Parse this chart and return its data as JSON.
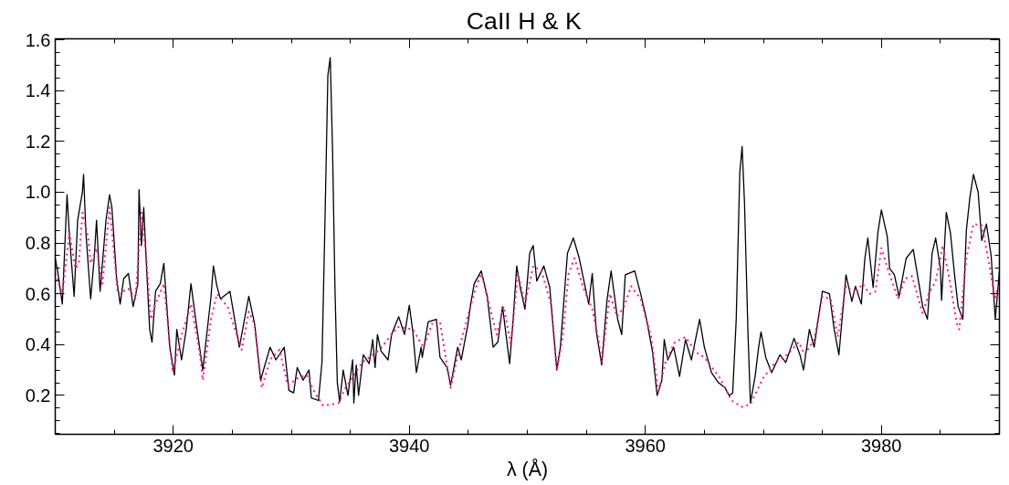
{
  "chart_data": {
    "type": "line",
    "title": "CaII  H & K",
    "xlabel": "λ (Å)",
    "xlim": [
      3910,
      3990
    ],
    "ylim": [
      0.047,
      1.604
    ],
    "xticks": [
      {
        "value": 3915,
        "label": null
      },
      3920,
      {
        "value": 3925,
        "label": null
      },
      {
        "value": 3930,
        "label": null
      },
      {
        "value": 3935,
        "label": null
      },
      3940,
      {
        "value": 3945,
        "label": null
      },
      {
        "value": 3950,
        "label": null
      },
      {
        "value": 3955,
        "label": null
      },
      3960,
      {
        "value": 3965,
        "label": null
      },
      {
        "value": 3970,
        "label": null
      },
      {
        "value": 3975,
        "label": null
      },
      3980,
      {
        "value": 3985,
        "label": null
      }
    ],
    "yticks": [
      {
        "value": 0.05,
        "label": null
      },
      {
        "value": 0.1,
        "label": null
      },
      {
        "value": 0.15,
        "label": null
      },
      0.2,
      {
        "value": 0.25,
        "label": null
      },
      {
        "value": 0.3,
        "label": null
      },
      {
        "value": 0.35,
        "label": null
      },
      0.4,
      {
        "value": 0.45,
        "label": null
      },
      {
        "value": 0.5,
        "label": null
      },
      {
        "value": 0.55,
        "label": null
      },
      0.6,
      {
        "value": 0.65,
        "label": null
      },
      {
        "value": 0.7,
        "label": null
      },
      {
        "value": 0.75,
        "label": null
      },
      0.8,
      {
        "value": 0.85,
        "label": null
      },
      {
        "value": 0.9,
        "label": null
      },
      {
        "value": 0.95,
        "label": null
      },
      {
        "value": 1.0,
        "label": "1.0"
      },
      {
        "value": 1.05,
        "label": null
      },
      {
        "value": 1.1,
        "label": null
      },
      {
        "value": 1.15,
        "label": null
      },
      1.2,
      {
        "value": 1.25,
        "label": null
      },
      {
        "value": 1.3,
        "label": null
      },
      {
        "value": 1.35,
        "label": null
      },
      1.4,
      {
        "value": 1.45,
        "label": null
      },
      {
        "value": 1.5,
        "label": null
      },
      {
        "value": 1.55,
        "label": null
      },
      1.6
    ],
    "grid": false,
    "series": [
      {
        "color": "#000000",
        "line_style": "solid",
        "x": [
          3910.0,
          3910.2,
          3910.6,
          3911.0,
          3911.2,
          3911.6,
          3911.9,
          3912.3,
          3912.4,
          3912.6,
          3913.0,
          3913.3,
          3913.5,
          3913.8,
          3914.3,
          3914.6,
          3914.8,
          3915.2,
          3915.5,
          3915.8,
          3916.2,
          3916.6,
          3917.0,
          3917.1,
          3917.3,
          3917.5,
          3917.7,
          3918.0,
          3918.2,
          3918.5,
          3918.9,
          3919.2,
          3919.7,
          3920.1,
          3920.3,
          3920.7,
          3921.1,
          3921.5,
          3921.9,
          3922.5,
          3923.2,
          3923.4,
          3923.7,
          3924.0,
          3924.8,
          3925.6,
          3926.4,
          3926.9,
          3927.4,
          3928.2,
          3928.7,
          3929.4,
          3929.8,
          3930.2,
          3930.5,
          3931.0,
          3931.5,
          3931.7,
          3932.3,
          3932.6,
          3932.85,
          3933.1,
          3933.3,
          3933.5,
          3933.7,
          3933.9,
          3934.1,
          3934.4,
          3934.8,
          3935.2,
          3935.3,
          3935.5,
          3935.7,
          3936.1,
          3936.6,
          3936.9,
          3937.1,
          3937.3,
          3937.6,
          3938.2,
          3938.5,
          3939.1,
          3939.6,
          3940.0,
          3940.3,
          3940.6,
          3941.0,
          3941.1,
          3941.6,
          3942.3,
          3942.6,
          3943.2,
          3943.5,
          3944.1,
          3944.4,
          3944.95,
          3945.2,
          3945.5,
          3946.1,
          3946.6,
          3947.1,
          3947.5,
          3947.9,
          3948.5,
          3948.8,
          3949.1,
          3949.4,
          3949.8,
          3950.2,
          3950.5,
          3950.8,
          3951.4,
          3951.9,
          3952.5,
          3952.8,
          3953.4,
          3953.9,
          3954.4,
          3954.8,
          3955.2,
          3955.5,
          3955.85,
          3956.3,
          3956.75,
          3957.1,
          3957.65,
          3958.0,
          3958.3,
          3959.1,
          3959.6,
          3960.1,
          3960.6,
          3961.0,
          3961.4,
          3961.6,
          3961.9,
          3962.4,
          3962.9,
          3963.4,
          3963.9,
          3964.6,
          3965.0,
          3965.6,
          3966.2,
          3966.75,
          3967.1,
          3967.4,
          3967.7,
          3968.0,
          3968.2,
          3968.4,
          3968.7,
          3968.9,
          3969.3,
          3969.6,
          3969.8,
          3970.2,
          3970.7,
          3971.4,
          3971.9,
          3972.6,
          3973.1,
          3973.4,
          3973.9,
          3974.3,
          3975.0,
          3975.6,
          3976.0,
          3976.4,
          3977.0,
          3977.5,
          3977.8,
          3978.3,
          3978.6,
          3978.85,
          3979.3,
          3979.7,
          3980.0,
          3980.5,
          3980.7,
          3981.1,
          3981.5,
          3982.1,
          3982.7,
          3983.0,
          3983.5,
          3983.9,
          3984.3,
          3984.6,
          3985.0,
          3985.1,
          3985.5,
          3985.85,
          3986.2,
          3986.5,
          3986.9,
          3987.2,
          3987.5,
          3987.8,
          3988.2,
          3988.5,
          3988.9,
          3989.3,
          3989.65,
          3990.0
        ],
        "values": [
          0.74,
          0.69,
          0.56,
          0.99,
          0.83,
          0.59,
          0.89,
          1.0,
          1.07,
          0.84,
          0.58,
          0.74,
          0.89,
          0.61,
          0.89,
          0.99,
          0.94,
          0.66,
          0.56,
          0.66,
          0.68,
          0.55,
          0.64,
          1.01,
          0.79,
          0.94,
          0.74,
          0.46,
          0.41,
          0.61,
          0.64,
          0.72,
          0.39,
          0.28,
          0.46,
          0.34,
          0.46,
          0.64,
          0.5,
          0.3,
          0.59,
          0.71,
          0.63,
          0.58,
          0.61,
          0.39,
          0.59,
          0.48,
          0.26,
          0.39,
          0.34,
          0.39,
          0.22,
          0.21,
          0.31,
          0.26,
          0.3,
          0.19,
          0.18,
          0.33,
          0.875,
          1.46,
          1.53,
          1.16,
          0.625,
          0.25,
          0.175,
          0.3,
          0.2,
          0.34,
          0.17,
          0.32,
          0.2,
          0.36,
          0.325,
          0.42,
          0.31,
          0.44,
          0.375,
          0.34,
          0.44,
          0.51,
          0.44,
          0.555,
          0.45,
          0.29,
          0.39,
          0.35,
          0.49,
          0.5,
          0.35,
          0.31,
          0.24,
          0.39,
          0.34,
          0.475,
          0.56,
          0.64,
          0.69,
          0.59,
          0.39,
          0.41,
          0.55,
          0.325,
          0.5,
          0.71,
          0.625,
          0.54,
          0.76,
          0.79,
          0.65,
          0.71,
          0.625,
          0.3,
          0.39,
          0.76,
          0.82,
          0.74,
          0.65,
          0.56,
          0.68,
          0.45,
          0.32,
          0.575,
          0.69,
          0.5,
          0.44,
          0.675,
          0.69,
          0.6,
          0.5,
          0.375,
          0.2,
          0.26,
          0.42,
          0.34,
          0.39,
          0.275,
          0.42,
          0.34,
          0.5,
          0.39,
          0.29,
          0.25,
          0.23,
          0.2,
          0.21,
          0.5,
          1.075,
          1.18,
          0.96,
          0.44,
          0.17,
          0.275,
          0.39,
          0.45,
          0.35,
          0.29,
          0.36,
          0.33,
          0.425,
          0.36,
          0.3,
          0.46,
          0.39,
          0.61,
          0.6,
          0.46,
          0.36,
          0.675,
          0.57,
          0.63,
          0.56,
          0.74,
          0.82,
          0.625,
          0.84,
          0.93,
          0.825,
          0.7,
          0.675,
          0.59,
          0.74,
          0.775,
          0.69,
          0.55,
          0.5,
          0.76,
          0.82,
          0.7,
          0.575,
          0.92,
          0.84,
          0.675,
          0.55,
          0.5,
          0.85,
          0.98,
          1.07,
          1.0,
          0.81,
          0.875,
          0.75,
          0.5,
          0.69
        ]
      },
      {
        "color": "#ff1493",
        "line_style": "dotted",
        "x": [
          3910.0,
          3910.6,
          3911.2,
          3911.7,
          3912.0,
          3912.3,
          3912.8,
          3913.0,
          3913.5,
          3914.0,
          3914.6,
          3915.0,
          3915.3,
          3916.2,
          3916.8,
          3917.3,
          3917.7,
          3918.1,
          3918.5,
          3919.2,
          3919.95,
          3920.6,
          3921.5,
          3922.3,
          3922.5,
          3923.2,
          3923.7,
          3924.6,
          3925.3,
          3925.8,
          3926.4,
          3926.9,
          3927.5,
          3928.2,
          3929.0,
          3929.7,
          3930.6,
          3931.3,
          3932.0,
          3932.7,
          3933.4,
          3934.0,
          3934.6,
          3936.0,
          3937.5,
          3939.0,
          3940.3,
          3941.2,
          3942.0,
          3942.6,
          3943.5,
          3944.2,
          3945.0,
          3945.6,
          3946.1,
          3946.7,
          3947.4,
          3948.0,
          3948.6,
          3949.2,
          3949.8,
          3950.5,
          3951.2,
          3952.0,
          3952.5,
          3953.0,
          3953.5,
          3954.0,
          3954.7,
          3955.5,
          3956.0,
          3956.3,
          3957.0,
          3957.6,
          3958.2,
          3958.8,
          3959.6,
          3960.5,
          3961.1,
          3961.7,
          3962.5,
          3963.4,
          3964.3,
          3965.0,
          3966.3,
          3967.3,
          3968.2,
          3968.9,
          3970.0,
          3971.0,
          3972.0,
          3973.0,
          3973.5,
          3974.3,
          3975.0,
          3975.7,
          3976.3,
          3977.0,
          3977.8,
          3978.4,
          3979.0,
          3979.5,
          3980.0,
          3980.6,
          3981.4,
          3982.0,
          3982.6,
          3983.5,
          3984.0,
          3984.6,
          3985.2,
          3985.8,
          3986.4,
          3986.6,
          3987.2,
          3987.8,
          3988.5,
          3989.2,
          3989.6,
          3990.0
        ],
        "values": [
          0.68,
          0.6,
          0.84,
          0.7,
          0.72,
          0.92,
          0.82,
          0.72,
          0.78,
          0.64,
          0.94,
          0.75,
          0.6,
          0.62,
          0.58,
          0.92,
          0.75,
          0.5,
          0.56,
          0.64,
          0.29,
          0.42,
          0.56,
          0.35,
          0.26,
          0.5,
          0.6,
          0.55,
          0.45,
          0.38,
          0.53,
          0.48,
          0.23,
          0.34,
          0.38,
          0.24,
          0.27,
          0.28,
          0.21,
          0.16,
          0.165,
          0.17,
          0.23,
          0.33,
          0.38,
          0.47,
          0.46,
          0.39,
          0.49,
          0.49,
          0.23,
          0.38,
          0.52,
          0.62,
          0.68,
          0.57,
          0.44,
          0.55,
          0.4,
          0.68,
          0.56,
          0.71,
          0.69,
          0.56,
          0.3,
          0.43,
          0.68,
          0.74,
          0.63,
          0.54,
          0.43,
          0.33,
          0.6,
          0.51,
          0.55,
          0.63,
          0.58,
          0.43,
          0.21,
          0.33,
          0.41,
          0.43,
          0.37,
          0.35,
          0.27,
          0.18,
          0.155,
          0.165,
          0.27,
          0.33,
          0.36,
          0.41,
          0.36,
          0.42,
          0.59,
          0.58,
          0.43,
          0.63,
          0.6,
          0.64,
          0.6,
          0.61,
          0.78,
          0.69,
          0.58,
          0.66,
          0.67,
          0.52,
          0.6,
          0.65,
          0.79,
          0.65,
          0.48,
          0.46,
          0.74,
          0.875,
          0.87,
          0.7,
          0.58,
          0.65
        ]
      }
    ]
  }
}
